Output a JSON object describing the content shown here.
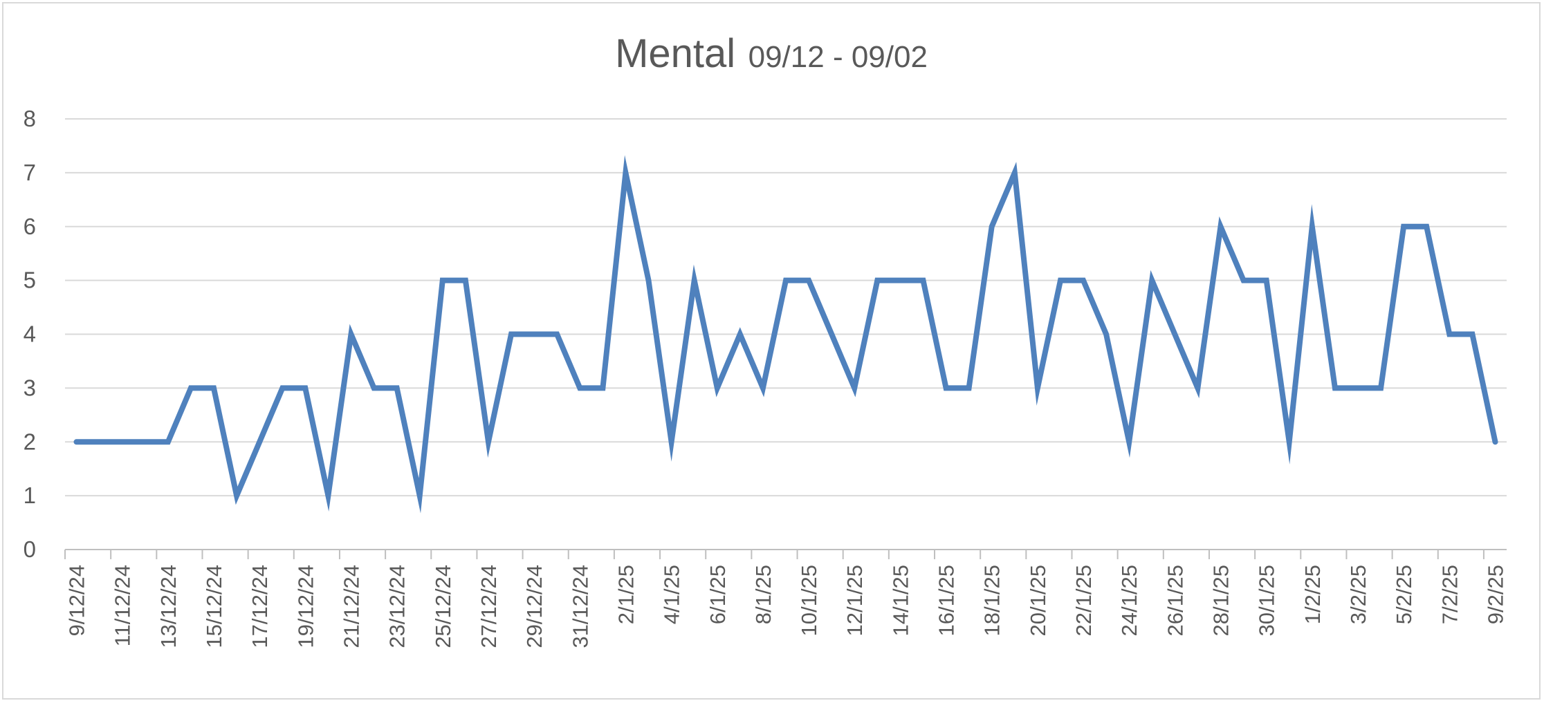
{
  "chart_data": {
    "type": "line",
    "title": "Mental",
    "subtitle": "09/12 - 09/02",
    "xlabel": "",
    "ylabel": "",
    "ylim": [
      0,
      8
    ],
    "yticks": [
      0,
      1,
      2,
      3,
      4,
      5,
      6,
      7,
      8
    ],
    "grid": true,
    "legend": "none",
    "line_color": "#4f81bd",
    "x": [
      "9/12/24",
      "10/12/24",
      "11/12/24",
      "12/12/24",
      "13/12/24",
      "14/12/24",
      "15/12/24",
      "16/12/24",
      "17/12/24",
      "18/12/24",
      "19/12/24",
      "20/12/24",
      "21/12/24",
      "22/12/24",
      "23/12/24",
      "24/12/24",
      "25/12/24",
      "26/12/24",
      "27/12/24",
      "28/12/24",
      "29/12/24",
      "30/12/24",
      "31/12/24",
      "1/1/25",
      "2/1/25",
      "3/1/25",
      "4/1/25",
      "5/1/25",
      "6/1/25",
      "7/1/25",
      "8/1/25",
      "9/1/25",
      "10/1/25",
      "11/1/25",
      "12/1/25",
      "13/1/25",
      "14/1/25",
      "15/1/25",
      "16/1/25",
      "17/1/25",
      "18/1/25",
      "19/1/25",
      "20/1/25",
      "21/1/25",
      "22/1/25",
      "23/1/25",
      "24/1/25",
      "25/1/25",
      "26/1/25",
      "27/1/25",
      "28/1/25",
      "29/1/25",
      "30/1/25",
      "31/1/25",
      "1/2/25",
      "2/2/25",
      "3/2/25",
      "4/2/25",
      "5/2/25",
      "6/2/25",
      "7/2/25",
      "8/2/25",
      "9/2/25"
    ],
    "tick_labels": [
      "9/12/24",
      "11/12/24",
      "13/12/24",
      "15/12/24",
      "17/12/24",
      "19/12/24",
      "21/12/24",
      "23/12/24",
      "25/12/24",
      "27/12/24",
      "29/12/24",
      "31/12/24",
      "2/1/25",
      "4/1/25",
      "6/1/25",
      "8/1/25",
      "10/1/25",
      "12/1/25",
      "14/1/25",
      "16/1/25",
      "18/1/25",
      "20/1/25",
      "22/1/25",
      "24/1/25",
      "26/1/25",
      "28/1/25",
      "30/1/25",
      "1/2/25",
      "3/2/25",
      "5/2/25",
      "7/2/25",
      "9/2/25"
    ],
    "values": [
      2,
      2,
      2,
      2,
      2,
      3,
      3,
      1,
      2,
      3,
      3,
      1,
      4,
      3,
      3,
      1,
      5,
      5,
      2,
      4,
      4,
      4,
      3,
      3,
      7,
      5,
      2,
      5,
      3,
      4,
      3,
      5,
      5,
      4,
      3,
      5,
      5,
      5,
      3,
      3,
      6,
      7,
      3,
      5,
      5,
      4,
      2,
      5,
      4,
      3,
      6,
      5,
      5,
      2,
      6,
      3,
      3,
      3,
      6,
      6,
      4,
      4,
      2
    ]
  }
}
